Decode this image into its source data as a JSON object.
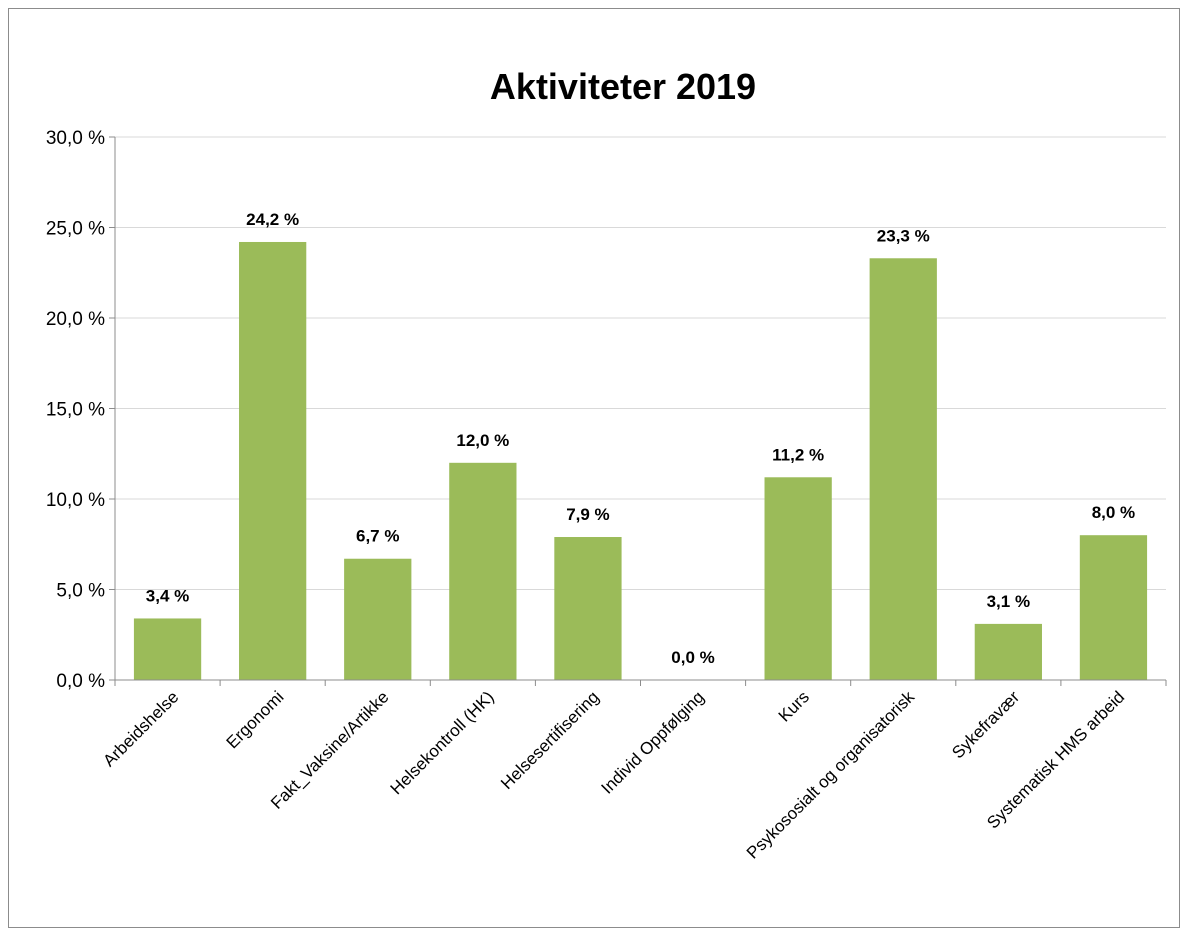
{
  "chart_data": {
    "type": "bar",
    "title": "Aktiviteter 2019",
    "categories": [
      "Arbeidshelse",
      "Ergonomi",
      "Fakt_Vaksine/Artikke",
      "Helsekontroll (HK)",
      "Helsesertifisering",
      "Individ Oppfølging",
      "Kurs",
      "Psykososialt og organisatorisk",
      "Sykefravær",
      "Systematisk HMS arbeid"
    ],
    "values": [
      3.4,
      24.2,
      6.7,
      12.0,
      7.9,
      0.0,
      11.2,
      23.3,
      3.1,
      8.0
    ],
    "data_labels": [
      "3,4 %",
      "24,2 %",
      "6,7 %",
      "12,0 %",
      "7,9 %",
      "0,0 %",
      "11,2 %",
      "23,3 %",
      "3,1 %",
      "8,0 %"
    ],
    "yticks": [
      0,
      5,
      10,
      15,
      20,
      25,
      30
    ],
    "ytick_labels": [
      "0,0 %",
      "5,0 %",
      "10,0 %",
      "15,0 %",
      "20,0 %",
      "25,0 %",
      "30,0 %"
    ],
    "ylim": [
      0,
      30
    ],
    "grid": true,
    "legend": "none",
    "bar_color": "#9bbb59"
  }
}
